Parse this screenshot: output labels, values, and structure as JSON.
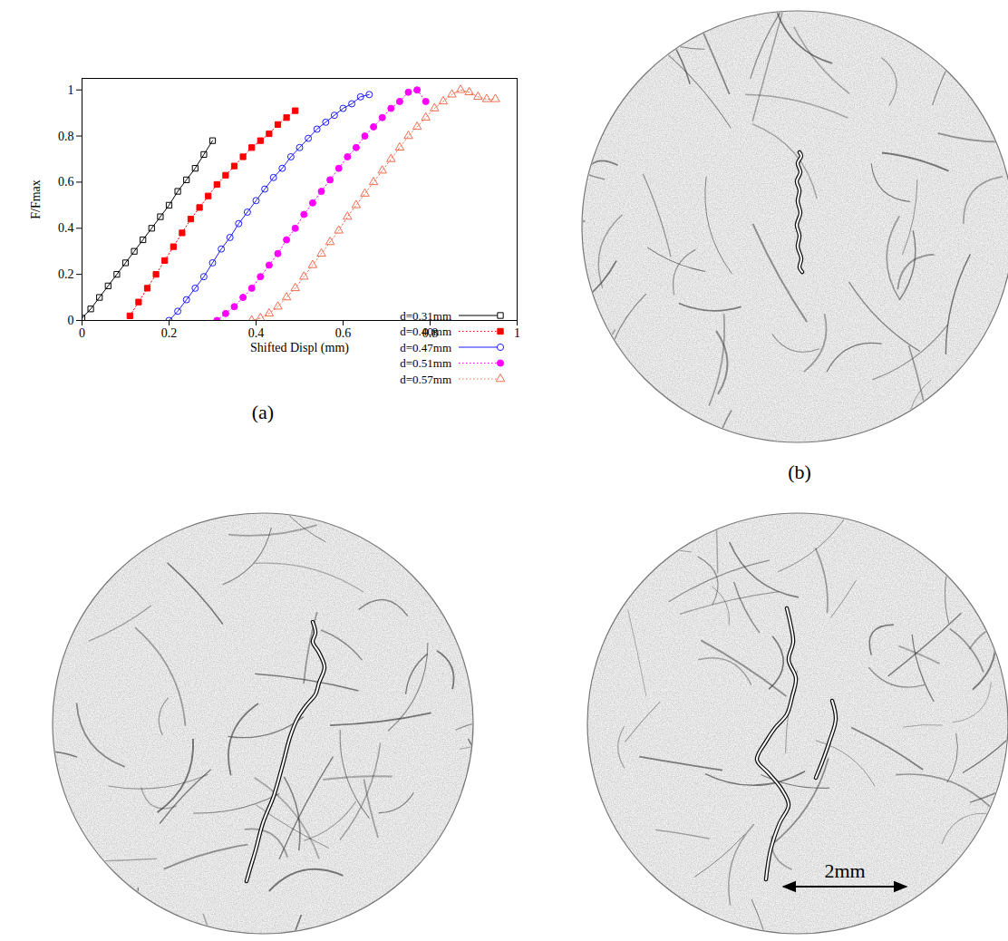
{
  "chart_data": {
    "type": "line",
    "xlabel": "Shifted Displ (mm)",
    "ylabel": "F/Fmax",
    "xlim": [
      0,
      1
    ],
    "ylim": [
      0,
      1.05
    ],
    "xticks": [
      0,
      0.2,
      0.4,
      0.6,
      0.8,
      1
    ],
    "yticks": [
      0,
      0.2,
      0.4,
      0.6,
      0.8,
      1
    ],
    "grid": false,
    "legend": "bottom-right",
    "series": [
      {
        "name": "d=0.31mm",
        "color": "#000000",
        "marker": "open-square",
        "line_style": "solid",
        "x": [
          0.0,
          0.02,
          0.04,
          0.06,
          0.08,
          0.1,
          0.12,
          0.14,
          0.16,
          0.18,
          0.2,
          0.22,
          0.24,
          0.26,
          0.28,
          0.3
        ],
        "values": [
          0.01,
          0.05,
          0.1,
          0.15,
          0.2,
          0.25,
          0.3,
          0.35,
          0.4,
          0.45,
          0.5,
          0.56,
          0.61,
          0.66,
          0.72,
          0.78
        ]
      },
      {
        "name": "d=0.40mm",
        "color": "#ff0000",
        "marker": "filled-square",
        "line_style": "dotted",
        "x": [
          0.11,
          0.13,
          0.15,
          0.17,
          0.19,
          0.21,
          0.23,
          0.25,
          0.27,
          0.29,
          0.31,
          0.33,
          0.35,
          0.37,
          0.39,
          0.41,
          0.43,
          0.45,
          0.47,
          0.49
        ],
        "values": [
          0.02,
          0.08,
          0.14,
          0.2,
          0.26,
          0.32,
          0.38,
          0.44,
          0.49,
          0.54,
          0.59,
          0.63,
          0.67,
          0.71,
          0.75,
          0.78,
          0.81,
          0.85,
          0.88,
          0.91
        ]
      },
      {
        "name": "d=0.47mm",
        "color": "#1a1aff",
        "marker": "open-circle",
        "line_style": "solid",
        "x": [
          0.2,
          0.22,
          0.24,
          0.26,
          0.28,
          0.3,
          0.32,
          0.34,
          0.36,
          0.38,
          0.4,
          0.42,
          0.44,
          0.46,
          0.48,
          0.5,
          0.52,
          0.54,
          0.56,
          0.58,
          0.6,
          0.62,
          0.64,
          0.66
        ],
        "values": [
          0.0,
          0.04,
          0.09,
          0.14,
          0.19,
          0.25,
          0.31,
          0.36,
          0.42,
          0.47,
          0.52,
          0.57,
          0.62,
          0.66,
          0.71,
          0.75,
          0.79,
          0.83,
          0.86,
          0.89,
          0.92,
          0.94,
          0.97,
          0.98
        ]
      },
      {
        "name": "d=0.51mm",
        "color": "#ff00ff",
        "marker": "filled-circle",
        "line_style": "dotted",
        "x": [
          0.31,
          0.33,
          0.35,
          0.37,
          0.39,
          0.41,
          0.43,
          0.45,
          0.47,
          0.49,
          0.51,
          0.53,
          0.55,
          0.57,
          0.59,
          0.61,
          0.63,
          0.65,
          0.67,
          0.69,
          0.71,
          0.73,
          0.75,
          0.77,
          0.79
        ],
        "values": [
          0.0,
          0.03,
          0.06,
          0.1,
          0.14,
          0.19,
          0.24,
          0.29,
          0.35,
          0.4,
          0.46,
          0.51,
          0.56,
          0.61,
          0.66,
          0.71,
          0.75,
          0.8,
          0.84,
          0.88,
          0.92,
          0.95,
          0.99,
          1.0,
          0.95
        ]
      },
      {
        "name": "d=0.57mm",
        "color": "#f26d50",
        "marker": "open-triangle",
        "line_style": "dotted",
        "x": [
          0.39,
          0.41,
          0.43,
          0.45,
          0.47,
          0.49,
          0.51,
          0.53,
          0.55,
          0.57,
          0.59,
          0.61,
          0.63,
          0.65,
          0.67,
          0.69,
          0.71,
          0.73,
          0.75,
          0.77,
          0.79,
          0.81,
          0.83,
          0.85,
          0.87,
          0.89,
          0.91,
          0.93,
          0.95
        ],
        "values": [
          0.0,
          0.01,
          0.03,
          0.06,
          0.1,
          0.14,
          0.19,
          0.24,
          0.29,
          0.34,
          0.39,
          0.45,
          0.5,
          0.55,
          0.6,
          0.65,
          0.7,
          0.75,
          0.8,
          0.84,
          0.88,
          0.92,
          0.95,
          0.98,
          1.0,
          0.99,
          0.97,
          0.96,
          0.96
        ]
      }
    ]
  },
  "figure": {
    "caption_a": "(a)",
    "caption_b": "(b)",
    "scale_bar": "2mm"
  }
}
